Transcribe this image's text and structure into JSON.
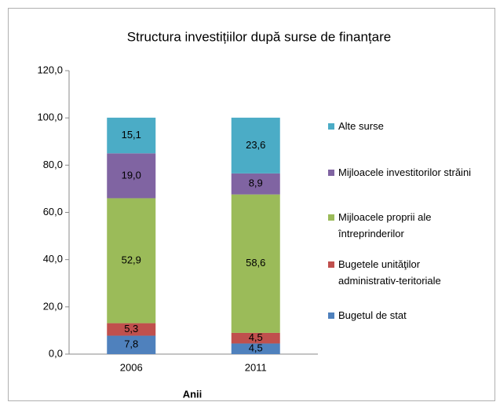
{
  "chart_data": {
    "type": "stacked_bar",
    "title": "Structura investițiilor după surse de finanțare",
    "xlabel": "Anii",
    "categories": [
      "2006",
      "2011"
    ],
    "series": [
      {
        "name": "Bugetul de stat",
        "color": "#4f81bd",
        "values": [
          7.8,
          4.5
        ],
        "value_labels": [
          "7,8",
          "4,5"
        ]
      },
      {
        "name": "Bugetele unităţilor administrativ-teritoriale",
        "color": "#c0504d",
        "values": [
          5.3,
          4.5
        ],
        "value_labels": [
          "5,3",
          "4,5"
        ]
      },
      {
        "name": "Mijloacele proprii ale întreprinderilor",
        "color": "#9bbb59",
        "values": [
          52.9,
          58.6
        ],
        "value_labels": [
          "52,9",
          "58,6"
        ]
      },
      {
        "name": "Mijloacele investitorilor străini",
        "color": "#8064a2",
        "values": [
          19.0,
          8.9
        ],
        "value_labels": [
          "19,0",
          "8,9"
        ]
      },
      {
        "name": "Alte surse",
        "color": "#4bacc6",
        "values": [
          15.1,
          23.6
        ],
        "value_labels": [
          "15,1",
          "23,6"
        ]
      }
    ],
    "ylim": [
      0,
      120
    ],
    "yticks": [
      {
        "value": 0,
        "label": "0,0"
      },
      {
        "value": 20,
        "label": "20,0"
      },
      {
        "value": 40,
        "label": "40,0"
      },
      {
        "value": 60,
        "label": "60,0"
      },
      {
        "value": 80,
        "label": "80,0"
      },
      {
        "value": 100,
        "label": "100,0"
      },
      {
        "value": 120,
        "label": "120,0"
      }
    ],
    "legend": "right"
  }
}
